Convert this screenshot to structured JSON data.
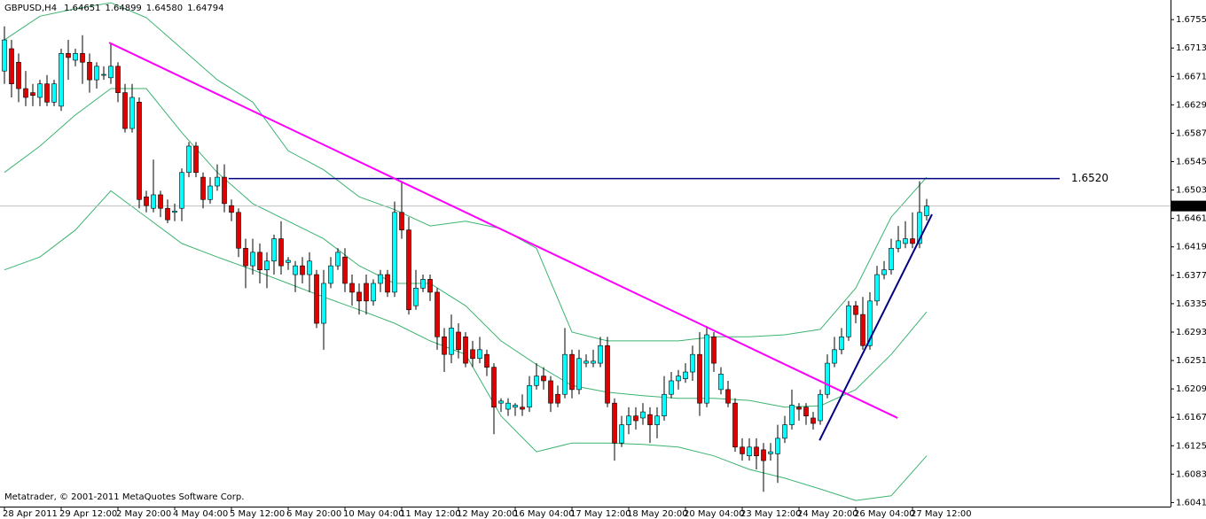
{
  "chart_data": {
    "type": "candlestick",
    "title": "GBPUSD,H4",
    "last_labels": [
      "1.64651",
      "1.64899",
      "1.64580",
      "1.64794"
    ],
    "footer": "Metatrader, © 2001-2011 MetaQuotes Software Corp.",
    "categories": [
      "28 Apr 2011",
      null,
      null,
      null,
      null,
      null,
      null,
      null,
      "29 Apr 12:00",
      null,
      null,
      null,
      null,
      null,
      null,
      null,
      "2 May 20:00",
      null,
      null,
      null,
      null,
      null,
      null,
      null,
      "4 May 04:00",
      null,
      null,
      null,
      null,
      null,
      null,
      null,
      "5 May 12:00",
      null,
      null,
      null,
      null,
      null,
      null,
      null,
      "6 May 20:00",
      null,
      null,
      null,
      null,
      null,
      null,
      null,
      "10 May 04:00",
      null,
      null,
      null,
      null,
      null,
      null,
      null,
      "11 May 12:00",
      null,
      null,
      null,
      null,
      null,
      null,
      null,
      "12 May 20:00",
      null,
      null,
      null,
      null,
      null,
      null,
      null,
      "16 May 04:00",
      null,
      null,
      null,
      null,
      null,
      null,
      null,
      "17 May 12:00",
      null,
      null,
      null,
      null,
      null,
      null,
      null,
      "18 May 20:00",
      null,
      null,
      null,
      null,
      null,
      null,
      null,
      "20 May 04:00",
      null,
      null,
      null,
      null,
      null,
      null,
      null,
      "23 May 12:00",
      null,
      null,
      null,
      null,
      null,
      null,
      null,
      "24 May 20:00",
      null,
      null,
      null,
      null,
      null,
      null,
      null,
      "26 May 04:00",
      null,
      null,
      null,
      null,
      null,
      null,
      null,
      "27 May 12:00",
      null,
      null
    ],
    "ohlc": [
      [
        1.6679,
        1.6745,
        1.666,
        1.6725
      ],
      [
        1.6712,
        1.6725,
        1.664,
        1.666
      ],
      [
        1.6692,
        1.6705,
        1.6633,
        1.6653
      ],
      [
        1.6653,
        1.6679,
        1.6627,
        1.664
      ],
      [
        1.6647,
        1.666,
        1.6627,
        1.6643
      ],
      [
        1.664,
        1.6666,
        1.6627,
        1.666
      ],
      [
        1.666,
        1.6673,
        1.6627,
        1.6633
      ],
      [
        1.6633,
        1.6666,
        1.6627,
        1.666
      ],
      [
        1.6627,
        1.6712,
        1.662,
        1.6705
      ],
      [
        1.6705,
        1.6725,
        1.6666,
        1.6699
      ],
      [
        1.6695,
        1.6712,
        1.6686,
        1.6705
      ],
      [
        1.6705,
        1.6732,
        1.666,
        1.6692
      ],
      [
        1.6692,
        1.6705,
        1.6647,
        1.6666
      ],
      [
        1.6666,
        1.6692,
        1.6653,
        1.6686
      ],
      [
        1.6673,
        1.6686,
        1.6666,
        1.6674
      ],
      [
        1.6669,
        1.6719,
        1.666,
        1.6686
      ],
      [
        1.6686,
        1.6692,
        1.6633,
        1.6647
      ],
      [
        1.6647,
        1.666,
        1.6588,
        1.6594
      ],
      [
        1.6594,
        1.666,
        1.6588,
        1.664
      ],
      [
        1.6633,
        1.664,
        1.6476,
        1.6489
      ],
      [
        1.6493,
        1.6502,
        1.647,
        1.648
      ],
      [
        1.6476,
        1.6548,
        1.647,
        1.6496
      ],
      [
        1.6496,
        1.6502,
        1.6463,
        1.6476
      ],
      [
        1.6476,
        1.6489,
        1.6454,
        1.6459
      ],
      [
        1.647,
        1.6483,
        1.6457,
        1.6472
      ],
      [
        1.6476,
        1.6535,
        1.6457,
        1.6529
      ],
      [
        1.6529,
        1.6574,
        1.6522,
        1.6568
      ],
      [
        1.6568,
        1.6574,
        1.6522,
        1.6529
      ],
      [
        1.6522,
        1.6529,
        1.6476,
        1.6489
      ],
      [
        1.6489,
        1.6522,
        1.6483,
        1.6509
      ],
      [
        1.6509,
        1.6541,
        1.6502,
        1.6522
      ],
      [
        1.6522,
        1.6541,
        1.647,
        1.6483
      ],
      [
        1.648,
        1.6489,
        1.6457,
        1.647
      ],
      [
        1.647,
        1.6476,
        1.6404,
        1.6417
      ],
      [
        1.6417,
        1.6431,
        1.6358,
        1.6391
      ],
      [
        1.6391,
        1.6431,
        1.6378,
        1.6411
      ],
      [
        1.6411,
        1.6424,
        1.6365,
        1.6385
      ],
      [
        1.6385,
        1.6411,
        1.6358,
        1.6398
      ],
      [
        1.6398,
        1.6437,
        1.6378,
        1.6431
      ],
      [
        1.6431,
        1.6457,
        1.6378,
        1.6391
      ],
      [
        1.6396,
        1.6404,
        1.6385,
        1.6399
      ],
      [
        1.6378,
        1.6398,
        1.6352,
        1.6391
      ],
      [
        1.6391,
        1.6404,
        1.6365,
        1.6378
      ],
      [
        1.6378,
        1.6411,
        1.6352,
        1.6398
      ],
      [
        1.6378,
        1.6385,
        1.6299,
        1.6306
      ],
      [
        1.6306,
        1.6385,
        1.6267,
        1.6365
      ],
      [
        1.6365,
        1.6404,
        1.6358,
        1.6391
      ],
      [
        1.6391,
        1.6417,
        1.6385,
        1.6411
      ],
      [
        1.6404,
        1.6417,
        1.6352,
        1.6365
      ],
      [
        1.6365,
        1.6378,
        1.6332,
        1.6352
      ],
      [
        1.6352,
        1.6365,
        1.6319,
        1.6339
      ],
      [
        1.6365,
        1.6378,
        1.6319,
        1.6339
      ],
      [
        1.6339,
        1.6371,
        1.6332,
        1.6365
      ],
      [
        1.6365,
        1.6385,
        1.6352,
        1.6378
      ],
      [
        1.6378,
        1.6385,
        1.6345,
        1.6352
      ],
      [
        1.6352,
        1.6486,
        1.6345,
        1.647
      ],
      [
        1.647,
        1.6516,
        1.6431,
        1.6444
      ],
      [
        1.6444,
        1.6463,
        1.6319,
        1.6326
      ],
      [
        1.6332,
        1.6385,
        1.6326,
        1.6358
      ],
      [
        1.6358,
        1.6378,
        1.6352,
        1.6371
      ],
      [
        1.6371,
        1.6378,
        1.6339,
        1.6352
      ],
      [
        1.6352,
        1.6358,
        1.6267,
        1.6286
      ],
      [
        1.6286,
        1.6299,
        1.6234,
        1.626
      ],
      [
        1.626,
        1.6319,
        1.6247,
        1.6299
      ],
      [
        1.6293,
        1.6306,
        1.6254,
        1.6267
      ],
      [
        1.6286,
        1.6293,
        1.6241,
        1.6247
      ],
      [
        1.6267,
        1.628,
        1.6241,
        1.6254
      ],
      [
        1.6254,
        1.6286,
        1.6247,
        1.6267
      ],
      [
        1.626,
        1.6267,
        1.6228,
        1.6241
      ],
      [
        1.6241,
        1.6247,
        1.6142,
        1.6182
      ],
      [
        1.6188,
        1.6195,
        1.6175,
        1.6191
      ],
      [
        1.6179,
        1.6195,
        1.6169,
        1.6188
      ],
      [
        1.6182,
        1.6188,
        1.6169,
        1.6185
      ],
      [
        1.6182,
        1.6201,
        1.6169,
        1.6179
      ],
      [
        1.6182,
        1.6228,
        1.6175,
        1.6214
      ],
      [
        1.6214,
        1.6247,
        1.6208,
        1.6228
      ],
      [
        1.6228,
        1.6241,
        1.6208,
        1.6221
      ],
      [
        1.6221,
        1.6228,
        1.6175,
        1.6188
      ],
      [
        1.6201,
        1.6214,
        1.6182,
        1.6188
      ],
      [
        1.6201,
        1.6299,
        1.6195,
        1.626
      ],
      [
        1.626,
        1.6267,
        1.6195,
        1.6208
      ],
      [
        1.6208,
        1.6267,
        1.6201,
        1.6254
      ],
      [
        1.6247,
        1.626,
        1.6241,
        1.625
      ],
      [
        1.6247,
        1.6267,
        1.6241,
        1.625
      ],
      [
        1.6247,
        1.6286,
        1.6241,
        1.6273
      ],
      [
        1.6273,
        1.6286,
        1.6182,
        1.6188
      ],
      [
        1.6188,
        1.6195,
        1.6103,
        1.6129
      ],
      [
        1.6129,
        1.6169,
        1.6123,
        1.6156
      ],
      [
        1.6156,
        1.6182,
        1.6142,
        1.6169
      ],
      [
        1.6169,
        1.6182,
        1.6149,
        1.6162
      ],
      [
        1.6166,
        1.6188,
        1.6156,
        1.6175
      ],
      [
        1.6171,
        1.6182,
        1.6129,
        1.6156
      ],
      [
        1.6156,
        1.6182,
        1.6136,
        1.6169
      ],
      [
        1.6169,
        1.6228,
        1.6162,
        1.6201
      ],
      [
        1.6201,
        1.6234,
        1.6195,
        1.6221
      ],
      [
        1.6221,
        1.6237,
        1.6208,
        1.6228
      ],
      [
        1.6224,
        1.6247,
        1.6218,
        1.6234
      ],
      [
        1.6234,
        1.6273,
        1.6221,
        1.626
      ],
      [
        1.626,
        1.6293,
        1.6169,
        1.6188
      ],
      [
        1.6188,
        1.6302,
        1.6182,
        1.6289
      ],
      [
        1.6286,
        1.6293,
        1.6234,
        1.6247
      ],
      [
        1.6208,
        1.6241,
        1.6201,
        1.6231
      ],
      [
        1.6208,
        1.6221,
        1.6182,
        1.6188
      ],
      [
        1.6188,
        1.6195,
        1.6116,
        1.6123
      ],
      [
        1.6123,
        1.6136,
        1.6103,
        1.6113
      ],
      [
        1.611,
        1.6136,
        1.6103,
        1.6123
      ],
      [
        1.6123,
        1.6136,
        1.609,
        1.611
      ],
      [
        1.6119,
        1.6129,
        1.6057,
        1.6103
      ],
      [
        1.6113,
        1.6129,
        1.6103,
        1.6116
      ],
      [
        1.6113,
        1.6156,
        1.607,
        1.6136
      ],
      [
        1.6136,
        1.6169,
        1.6129,
        1.6156
      ],
      [
        1.6156,
        1.6208,
        1.6149,
        1.6185
      ],
      [
        1.6182,
        1.6188,
        1.6162,
        1.6179
      ],
      [
        1.6182,
        1.6188,
        1.6156,
        1.6169
      ],
      [
        1.6166,
        1.6175,
        1.6149,
        1.6158
      ],
      [
        1.6162,
        1.6208,
        1.6156,
        1.6201
      ],
      [
        1.6201,
        1.626,
        1.6195,
        1.6247
      ],
      [
        1.6247,
        1.6286,
        1.6241,
        1.6267
      ],
      [
        1.6267,
        1.6299,
        1.626,
        1.6286
      ],
      [
        1.6286,
        1.6339,
        1.628,
        1.6332
      ],
      [
        1.6332,
        1.6339,
        1.6306,
        1.6319
      ],
      [
        1.6319,
        1.6345,
        1.6267,
        1.6273
      ],
      [
        1.6273,
        1.6352,
        1.6267,
        1.6339
      ],
      [
        1.6339,
        1.6391,
        1.6332,
        1.6378
      ],
      [
        1.6378,
        1.6398,
        1.6371,
        1.6385
      ],
      [
        1.6385,
        1.6431,
        1.6378,
        1.6417
      ],
      [
        1.6417,
        1.645,
        1.6411,
        1.6428
      ],
      [
        1.6424,
        1.6457,
        1.6417,
        1.6431
      ],
      [
        1.6431,
        1.647,
        1.6417,
        1.6424
      ],
      [
        1.6424,
        1.6516,
        1.6417,
        1.647
      ],
      [
        1.64651,
        1.64899,
        1.6458,
        1.64794
      ]
    ],
    "up_color": "#00ffff",
    "down_color": "#e00000",
    "band_x": [
      0,
      5,
      10,
      15,
      20,
      25,
      30,
      35,
      40,
      45,
      50,
      55,
      60,
      65,
      70,
      75,
      80,
      85,
      90,
      95,
      100,
      105,
      110,
      115,
      120,
      125,
      130
    ],
    "bands": [
      {
        "color": "#3cb371",
        "values": [
          1.6725,
          1.676,
          1.6771,
          1.678,
          1.6758,
          1.6712,
          1.6666,
          1.6633,
          1.6561,
          1.6533,
          1.6493,
          1.6474,
          1.645,
          1.6457,
          1.6446,
          1.6417,
          1.6293,
          1.628,
          1.628,
          1.628,
          1.6286,
          1.6286,
          1.6289,
          1.6297,
          1.6358,
          1.6463,
          1.6522
        ]
      },
      {
        "color": "#3cb371",
        "values": [
          1.6529,
          1.6568,
          1.6614,
          1.6653,
          1.6653,
          1.6588,
          1.6529,
          1.6483,
          1.6457,
          1.6431,
          1.6391,
          1.6365,
          1.6365,
          1.6332,
          1.628,
          1.6245,
          1.6214,
          1.6204,
          1.6199,
          1.6195,
          1.6195,
          1.6192,
          1.6182,
          1.6184,
          1.6208,
          1.626,
          1.6323
        ]
      },
      {
        "color": "#3cb371",
        "values": [
          1.6385,
          1.6404,
          1.6444,
          1.6502,
          1.6463,
          1.6424,
          1.6404,
          1.6385,
          1.6365,
          1.6345,
          1.6326,
          1.6306,
          1.628,
          1.626,
          1.6169,
          1.6116,
          1.6129,
          1.6129,
          1.6127,
          1.6123,
          1.611,
          1.609,
          1.6077,
          1.6061,
          1.6044,
          1.6051,
          1.611
        ]
      }
    ],
    "trendlines": [
      {
        "color": "#ff00ff",
        "x": [
          14.75,
          125.9
        ],
        "values": [
          1.6721,
          1.6166
        ]
      },
      {
        "color": "#000080",
        "x": [
          114.9,
          130.75
        ],
        "values": [
          1.6133,
          1.6467
        ]
      }
    ],
    "hline": {
      "value": 1.652,
      "label": "1.6520",
      "color": "#000080",
      "x": [
        31.6,
        148.75
      ]
    },
    "xlim": [
      -0.625,
      164.375
    ],
    "ylim": [
      1.6035,
      1.6784
    ],
    "yticks": [
      {
        "value": 1.6755,
        "label": "1.67550"
      },
      {
        "value": 1.6713,
        "label": "1.67130"
      },
      {
        "value": 1.6671,
        "label": "1.66710"
      },
      {
        "value": 1.6629,
        "label": "1.66290"
      },
      {
        "value": 1.6587,
        "label": "1.65870"
      },
      {
        "value": 1.6545,
        "label": "1.65450"
      },
      {
        "value": 1.6503,
        "label": "1.65030"
      },
      {
        "value": 1.6461,
        "label": "1.64610"
      },
      {
        "value": 1.6419,
        "label": "1.64190"
      },
      {
        "value": 1.6377,
        "label": "1.63770"
      },
      {
        "value": 1.6335,
        "label": "1.63350"
      },
      {
        "value": 1.6293,
        "label": "1.62930"
      },
      {
        "value": 1.6251,
        "label": "1.62510"
      },
      {
        "value": 1.6209,
        "label": "1.62090"
      },
      {
        "value": 1.6167,
        "label": "1.61670"
      },
      {
        "value": 1.6125,
        "label": "1.61250"
      },
      {
        "value": 1.6083,
        "label": "1.60830"
      },
      {
        "value": 1.6041,
        "label": "1.60410"
      }
    ],
    "grid": false
  }
}
